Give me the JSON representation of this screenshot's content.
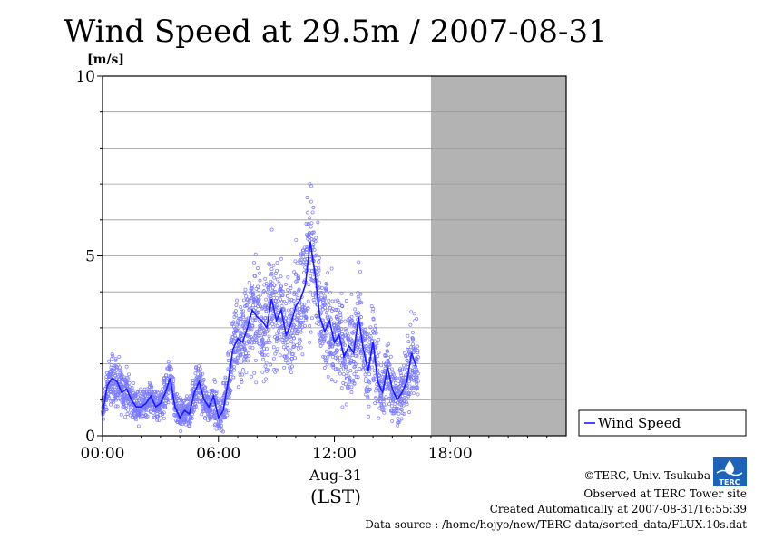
{
  "chart_data": {
    "type": "scatter",
    "title": "Wind Speed at 29.5m / 2007-08-31",
    "ylabel": "[m/s]",
    "ylim": [
      0,
      10
    ],
    "y_ticks": [
      "0",
      "5",
      "10"
    ],
    "xlim_hours": [
      0,
      24
    ],
    "x_ticks": [
      "00:00",
      "06:00",
      "12:00",
      "18:00"
    ],
    "x_date_label": "Aug-31",
    "x_unit_label": "(LST)",
    "no_data_from_hour": 17,
    "grid": true,
    "legend": "bottom-right",
    "series": [
      {
        "name": "Wind Speed",
        "color": "#1a1aff",
        "mean_line": {
          "t": [
            0.0,
            0.25,
            0.5,
            0.75,
            1.0,
            1.25,
            1.5,
            1.75,
            2.0,
            2.25,
            2.5,
            2.75,
            3.0,
            3.25,
            3.5,
            3.75,
            4.0,
            4.25,
            4.5,
            4.75,
            5.0,
            5.25,
            5.5,
            5.75,
            6.0,
            6.25,
            6.5,
            6.75,
            7.0,
            7.25,
            7.5,
            7.75,
            8.0,
            8.25,
            8.5,
            8.75,
            9.0,
            9.25,
            9.5,
            9.75,
            10.0,
            10.25,
            10.5,
            10.75,
            11.0,
            11.25,
            11.5,
            11.75,
            12.0,
            12.25,
            12.5,
            12.75,
            13.0,
            13.25,
            13.5,
            13.75,
            14.0,
            14.25,
            14.5,
            14.75,
            15.0,
            15.25,
            15.5,
            15.75,
            16.0,
            16.25
          ],
          "v": [
            0.6,
            1.4,
            1.6,
            1.5,
            1.2,
            1.3,
            1.0,
            0.8,
            0.8,
            0.9,
            1.1,
            0.8,
            0.9,
            1.2,
            1.6,
            0.8,
            0.5,
            0.7,
            0.6,
            1.2,
            1.5,
            1.0,
            0.8,
            1.1,
            0.5,
            0.7,
            1.5,
            2.4,
            2.7,
            2.6,
            3.0,
            3.5,
            3.3,
            3.2,
            3.0,
            3.8,
            3.2,
            3.5,
            2.8,
            3.1,
            3.6,
            3.8,
            4.2,
            5.4,
            4.5,
            3.3,
            2.9,
            3.2,
            2.6,
            2.8,
            2.2,
            2.5,
            2.3,
            3.3,
            2.4,
            1.8,
            2.6,
            1.5,
            1.2,
            1.9,
            1.3,
            1.0,
            1.2,
            1.5,
            2.3,
            1.9
          ]
        },
        "scatter_spread": [
          0.3,
          0.4,
          0.5,
          0.5,
          0.4,
          0.4,
          0.3,
          0.3,
          0.3,
          0.3,
          0.3,
          0.3,
          0.3,
          0.4,
          0.4,
          0.3,
          0.3,
          0.3,
          0.3,
          0.4,
          0.4,
          0.4,
          0.3,
          0.4,
          0.3,
          0.4,
          0.6,
          0.8,
          0.9,
          0.9,
          0.9,
          1.0,
          1.0,
          1.0,
          1.0,
          1.0,
          1.0,
          1.0,
          0.9,
          1.0,
          1.0,
          1.1,
          1.2,
          1.4,
          1.2,
          1.0,
          0.9,
          1.0,
          0.9,
          0.9,
          0.8,
          0.9,
          0.9,
          1.0,
          0.8,
          0.7,
          0.9,
          0.7,
          0.6,
          0.7,
          0.6,
          0.5,
          0.6,
          0.7,
          0.8,
          0.7
        ]
      }
    ]
  },
  "footer": {
    "credit": "©TERC, Univ. Tsukuba",
    "site": "Observed at TERC Tower site",
    "created": "Created Automatically at 2007-08-31/16:55:39",
    "source": "Data source : /home/hojyo/new/TERC-data/sorted_data/FLUX.10s.dat"
  },
  "logo_text": "TERC",
  "colors": {
    "scatter": "#7b7bff",
    "line": "#1a1aff",
    "nodata": "#b3b3b3",
    "grid": "#999999"
  }
}
